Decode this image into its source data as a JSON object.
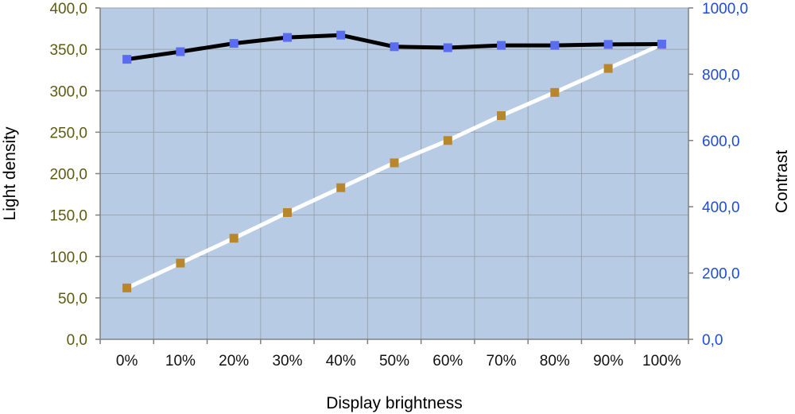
{
  "chart_data": {
    "type": "line",
    "xlabel": "Display brightness",
    "ylabel_left": "Light density",
    "ylabel_right": "Contrast",
    "categories": [
      "0%",
      "10%",
      "20%",
      "30%",
      "40%",
      "50%",
      "60%",
      "70%",
      "80%",
      "90%",
      "100%"
    ],
    "y_left": {
      "lim": [
        0,
        400
      ],
      "ticks": [
        0,
        50,
        100,
        150,
        200,
        250,
        300,
        350,
        400
      ],
      "tick_labels": [
        "0,0",
        "50,0",
        "100,0",
        "150,0",
        "200,0",
        "250,0",
        "300,0",
        "350,0",
        "400,0"
      ]
    },
    "y_right": {
      "lim": [
        0,
        1000
      ],
      "ticks": [
        0,
        200,
        400,
        600,
        800,
        1000
      ],
      "tick_labels": [
        "0,0",
        "200,0",
        "400,0",
        "600,0",
        "800,0",
        "1000,0"
      ]
    },
    "grid": true,
    "series": [
      {
        "axis": "left",
        "values": [
          62,
          92,
          122,
          153,
          183,
          213,
          240,
          270,
          298,
          327,
          356
        ],
        "line_color": "#ffffff",
        "marker_color": "#b8862b"
      },
      {
        "axis": "right",
        "values": [
          845,
          868,
          893,
          911,
          918,
          883,
          880,
          887,
          887,
          890,
          891
        ],
        "line_color": "#000000",
        "marker_color": "#5a6cf0"
      }
    ],
    "colors": {
      "plot_background": "#b7cce4",
      "grid": "#9aa3ad",
      "left_tick_text": "#5c5c14",
      "right_tick_text": "#1f4bd8"
    }
  }
}
